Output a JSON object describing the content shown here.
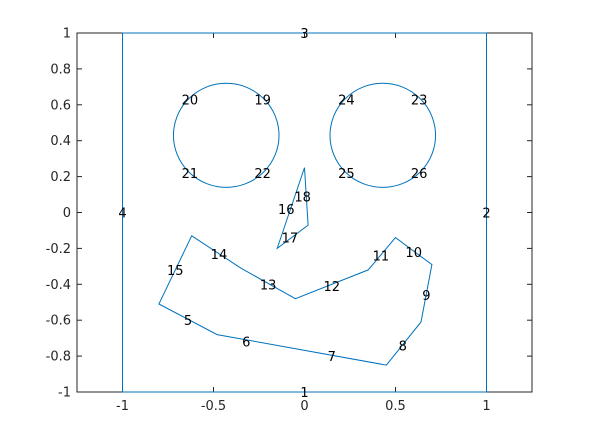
{
  "chart_data": {
    "type": "line",
    "title": "",
    "xlabel": "",
    "ylabel": "",
    "xlim": [
      -1.25,
      1.25
    ],
    "ylim": [
      -1,
      1
    ],
    "x_ticks": [
      -1,
      -0.5,
      0,
      0.5,
      1
    ],
    "x_tick_labels": [
      "-1",
      "-0.5",
      "0",
      "0.5",
      "1"
    ],
    "y_ticks": [
      -1,
      -0.8,
      -0.6,
      -0.4,
      -0.2,
      0,
      0.2,
      0.4,
      0.6,
      0.8,
      1
    ],
    "y_tick_labels": [
      "-1",
      "-0.8",
      "-0.6",
      "-0.4",
      "-0.2",
      "0",
      "0.2",
      "0.4",
      "0.6",
      "0.8",
      "1"
    ],
    "grid": false,
    "line_color": "#0072BD",
    "shapes": [
      {
        "kind": "polygon",
        "points": [
          [
            -1,
            -1
          ],
          [
            1,
            -1
          ],
          [
            1,
            1
          ],
          [
            -1,
            1
          ]
        ]
      },
      {
        "kind": "circle",
        "center": [
          -0.43,
          0.43
        ],
        "radius": 0.29
      },
      {
        "kind": "circle",
        "center": [
          0.43,
          0.43
        ],
        "radius": 0.29
      },
      {
        "kind": "polygon",
        "points": [
          [
            -0.15,
            -0.2
          ],
          [
            0.0,
            0.25
          ],
          [
            0.02,
            -0.07
          ]
        ]
      },
      {
        "kind": "polygon",
        "points": [
          [
            -0.62,
            -0.13
          ],
          [
            -0.35,
            -0.31
          ],
          [
            -0.05,
            -0.48
          ],
          [
            0.35,
            -0.32
          ],
          [
            0.5,
            -0.14
          ],
          [
            0.7,
            -0.29
          ],
          [
            0.64,
            -0.61
          ],
          [
            0.45,
            -0.85
          ],
          [
            -0.48,
            -0.68
          ],
          [
            -0.8,
            -0.51
          ]
        ]
      }
    ],
    "edge_labels": [
      {
        "text": "1",
        "x": 0.0,
        "y": -1.0
      },
      {
        "text": "2",
        "x": 1.0,
        "y": 0.0
      },
      {
        "text": "3",
        "x": 0.0,
        "y": 1.0
      },
      {
        "text": "4",
        "x": -1.0,
        "y": 0.0
      },
      {
        "text": "5",
        "x": -0.64,
        "y": -0.6
      },
      {
        "text": "6",
        "x": -0.32,
        "y": -0.72
      },
      {
        "text": "7",
        "x": 0.15,
        "y": -0.8
      },
      {
        "text": "8",
        "x": 0.54,
        "y": -0.74
      },
      {
        "text": "9",
        "x": 0.67,
        "y": -0.46
      },
      {
        "text": "10",
        "x": 0.6,
        "y": -0.22
      },
      {
        "text": "11",
        "x": 0.42,
        "y": -0.24
      },
      {
        "text": "12",
        "x": 0.15,
        "y": -0.41
      },
      {
        "text": "13",
        "x": -0.2,
        "y": -0.4
      },
      {
        "text": "14",
        "x": -0.47,
        "y": -0.23
      },
      {
        "text": "15",
        "x": -0.71,
        "y": -0.32
      },
      {
        "text": "16",
        "x": -0.1,
        "y": 0.02
      },
      {
        "text": "17",
        "x": -0.08,
        "y": -0.14
      },
      {
        "text": "18",
        "x": -0.01,
        "y": 0.09
      },
      {
        "text": "19",
        "x": -0.23,
        "y": 0.63
      },
      {
        "text": "20",
        "x": -0.63,
        "y": 0.63
      },
      {
        "text": "21",
        "x": -0.63,
        "y": 0.22
      },
      {
        "text": "22",
        "x": -0.23,
        "y": 0.22
      },
      {
        "text": "23",
        "x": 0.63,
        "y": 0.63
      },
      {
        "text": "24",
        "x": 0.23,
        "y": 0.63
      },
      {
        "text": "25",
        "x": 0.23,
        "y": 0.22
      },
      {
        "text": "26",
        "x": 0.63,
        "y": 0.22
      }
    ]
  }
}
